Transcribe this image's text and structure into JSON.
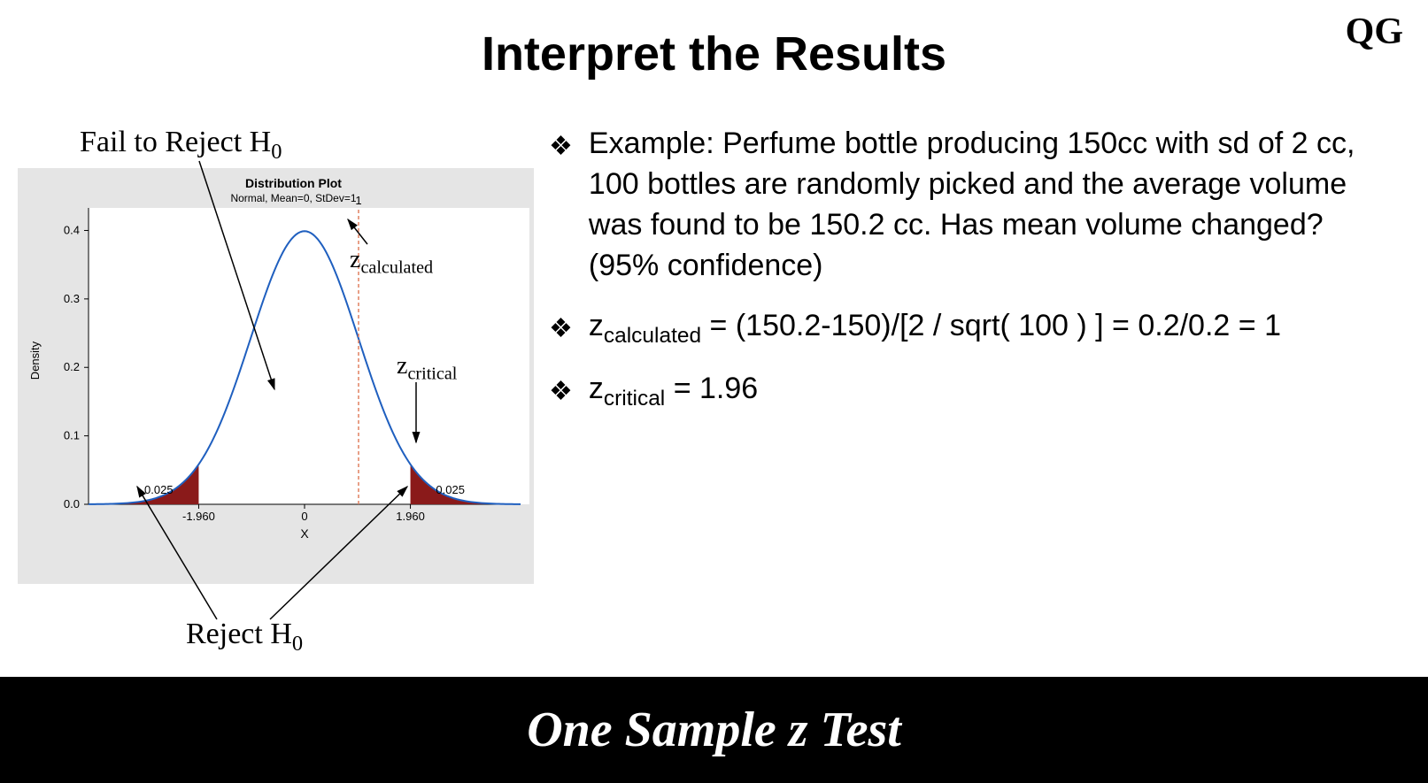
{
  "title": "Interpret the Results",
  "logo": "QG",
  "footer": "One Sample z Test",
  "bullets": {
    "b1": "Example: Perfume bottle producing 150cc with sd of 2 cc,  100 bottles are randomly picked and the average volume was found to be 150.2 cc. Has mean volume changed? (95% confidence)",
    "b2_pre": "z",
    "b2_sub": "calculated",
    "b2_post": " = (150.2-150)/[2 / sqrt( 100 ) ] = 0.2/0.2 = 1",
    "b3_pre": "z",
    "b3_sub": "critical",
    "b3_post": " = 1.96"
  },
  "annot": {
    "fail": "Fail to Reject H",
    "fail_sub": "0",
    "reject": "Reject H",
    "reject_sub": "0",
    "zcalc": "z",
    "zcalc_sub": "calculated",
    "zcrit": "z",
    "zcrit_sub": "critical"
  },
  "chart": {
    "title": "Distribution Plot",
    "subtitle": "Normal, Mean=0, StDev=1",
    "xlabel": "X",
    "ylabel": "Density",
    "bg_outer": "#e5e5e5",
    "bg_inner": "#ffffff",
    "curve_color": "#1f5fbf",
    "tail_fill": "#8a1a1a",
    "calc_line_color": "#e08060",
    "text_color": "#000000",
    "y_ticks": [
      0.0,
      0.1,
      0.2,
      0.3,
      0.4
    ],
    "x_ticks": [
      {
        "v": -1.96,
        "label": "-1.960"
      },
      {
        "v": 0,
        "label": "0"
      },
      {
        "v": 1.96,
        "label": "1.960"
      }
    ],
    "tail_area_label": "0.025",
    "z_calc": 1,
    "z_calc_label": "1",
    "z_crit": 1.96,
    "x_range": [
      -4,
      4
    ],
    "y_max": 0.42
  }
}
